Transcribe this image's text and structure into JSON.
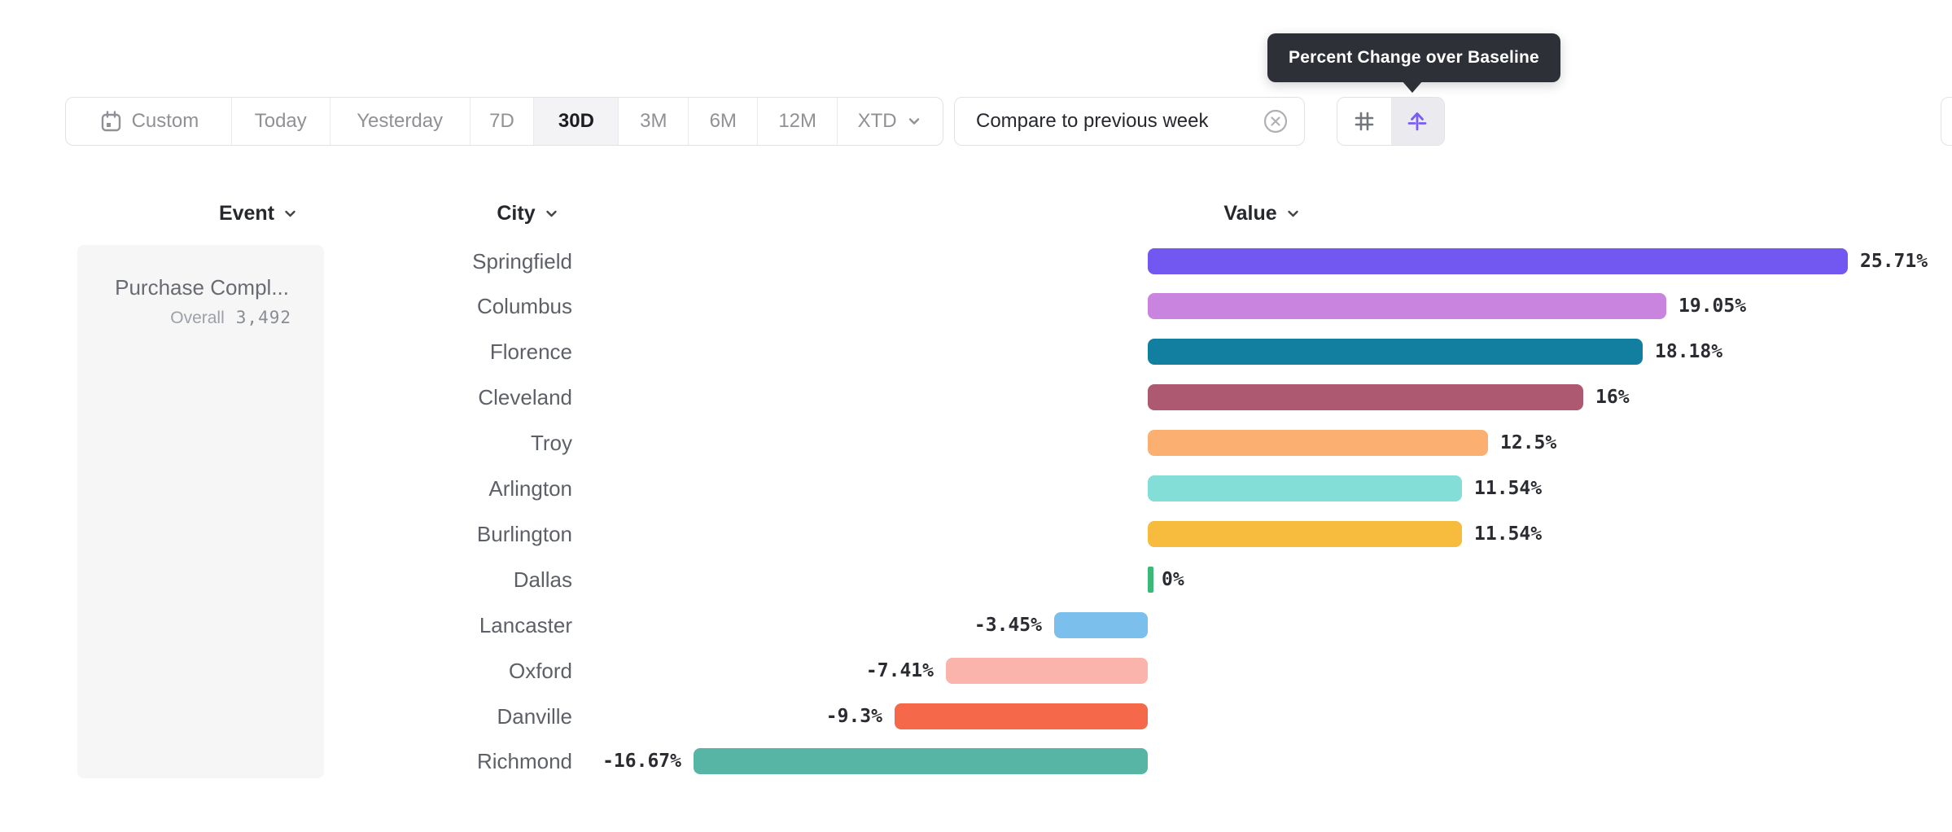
{
  "tooltip": {
    "text": "Percent Change over Baseline"
  },
  "toolbar": {
    "items": [
      {
        "label": "Custom"
      },
      {
        "label": "Today"
      },
      {
        "label": "Yesterday"
      },
      {
        "label": "7D"
      },
      {
        "label": "30D",
        "selected": true
      },
      {
        "label": "3M"
      },
      {
        "label": "6M"
      },
      {
        "label": "12M"
      },
      {
        "label": "XTD"
      }
    ],
    "compare": {
      "label": "Compare to previous week"
    }
  },
  "table": {
    "headers": [
      {
        "label": "Event"
      },
      {
        "label": "City"
      },
      {
        "label": "Value"
      }
    ]
  },
  "event_card": {
    "title": "Purchase Compl...",
    "overall_label": "Overall",
    "overall_value": "3,492"
  },
  "chart_data": {
    "type": "bar",
    "orientation": "horizontal",
    "series_name": "Value",
    "unit": "percent",
    "baseline_value": 0,
    "categories": [
      "Springfield",
      "Columbus",
      "Florence",
      "Cleveland",
      "Troy",
      "Arlington",
      "Burlington",
      "Dallas",
      "Lancaster",
      "Oxford",
      "Danville",
      "Richmond"
    ],
    "values": [
      25.71,
      19.05,
      18.18,
      16,
      12.5,
      11.54,
      11.54,
      0,
      -3.45,
      -7.41,
      -9.3,
      -16.67
    ],
    "labels": [
      "25.71%",
      "19.05%",
      "18.18%",
      "16%",
      "12.5%",
      "11.54%",
      "11.54%",
      "0%",
      "-3.45%",
      "-7.41%",
      "-9.3%",
      "-16.67%"
    ],
    "colors": [
      "#7257F0",
      "#C884DE",
      "#137FA0",
      "#AD5971",
      "#FBB072",
      "#82DED6",
      "#F7BB3E",
      "#3CB877",
      "#7BC0EC",
      "#FAB4AB",
      "#F5694A",
      "#57B5A5"
    ]
  }
}
